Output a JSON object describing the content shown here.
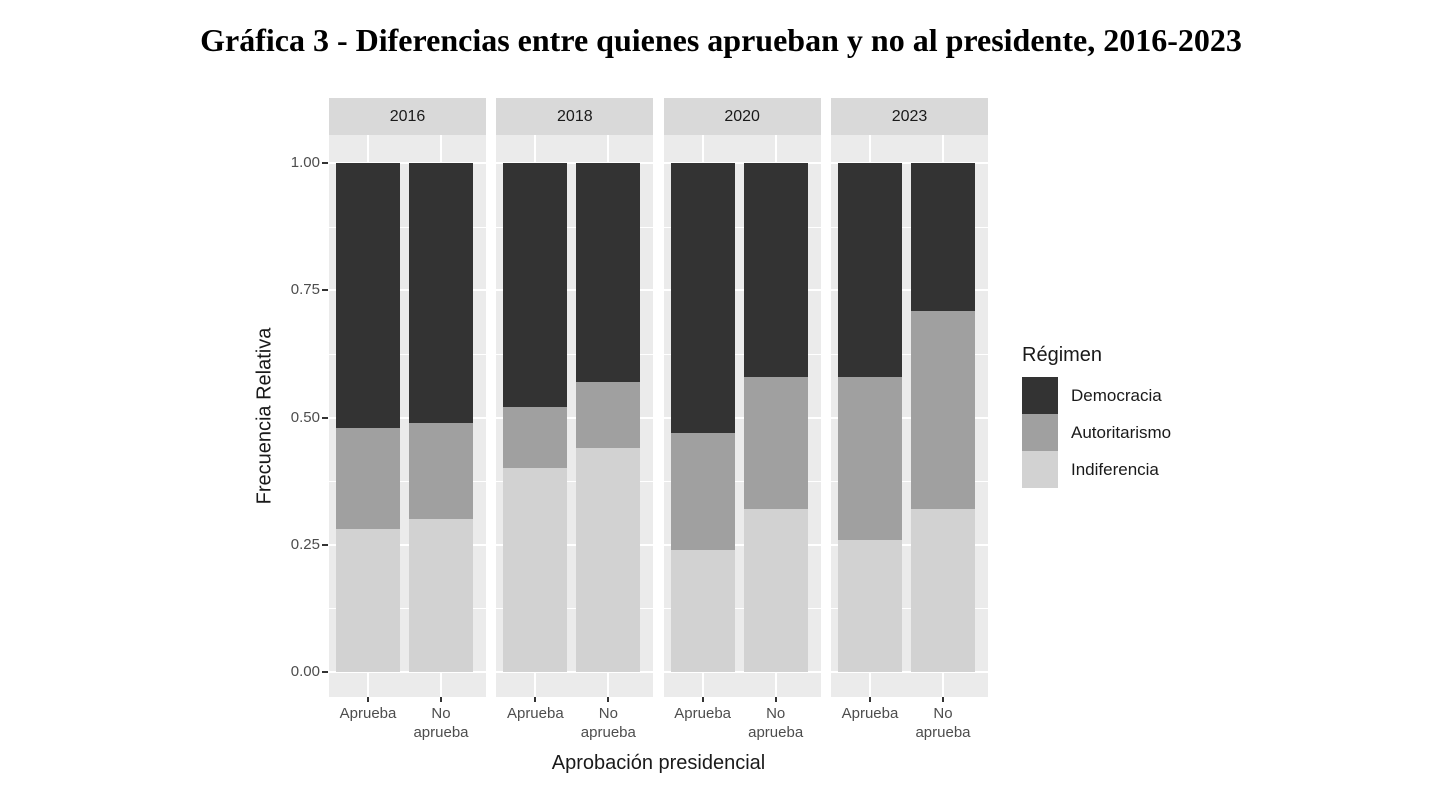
{
  "title": "Gráfica 3 - Diferencias entre quienes aprueban y no al presidente, 2016-2023",
  "chart_data": {
    "type": "bar",
    "stacked": true,
    "normalized": true,
    "title": "Gráfica 3 - Diferencias entre quienes aprueban y no al presidente, 2016-2023",
    "xlabel": "Aprobación presidencial",
    "ylabel": "Frecuencia Relativa",
    "ylim": [
      0,
      1
    ],
    "y_ticks": [
      "1.00",
      "0.75",
      "0.50",
      "0.25",
      "0.00"
    ],
    "y_minor_gridlines": [
      0.875,
      0.625,
      0.375,
      0.125
    ],
    "grid": "white gridlines on gray panel",
    "legend_position": "right",
    "legend": {
      "title": "Régimen",
      "entries": [
        {
          "label": "Democracia",
          "color": "#333333"
        },
        {
          "label": "Autoritarismo",
          "color": "#a0a0a0"
        },
        {
          "label": "Indiferencia",
          "color": "#d2d2d2"
        }
      ]
    },
    "series_order_top_to_bottom": [
      "Democracia",
      "Autoritarismo",
      "Indiferencia"
    ],
    "facets": [
      {
        "label": "2016",
        "bars": [
          {
            "label": "Aprueba",
            "values": {
              "Democracia": 0.52,
              "Autoritarismo": 0.2,
              "Indiferencia": 0.28
            }
          },
          {
            "label": "No aprueba",
            "values": {
              "Democracia": 0.51,
              "Autoritarismo": 0.19,
              "Indiferencia": 0.3
            }
          }
        ]
      },
      {
        "label": "2018",
        "bars": [
          {
            "label": "Aprueba",
            "values": {
              "Democracia": 0.48,
              "Autoritarismo": 0.12,
              "Indiferencia": 0.4
            }
          },
          {
            "label": "No aprueba",
            "values": {
              "Democracia": 0.43,
              "Autoritarismo": 0.13,
              "Indiferencia": 0.44
            }
          }
        ]
      },
      {
        "label": "2020",
        "bars": [
          {
            "label": "Aprueba",
            "values": {
              "Democracia": 0.53,
              "Autoritarismo": 0.23,
              "Indiferencia": 0.24
            }
          },
          {
            "label": "No aprueba",
            "values": {
              "Democracia": 0.42,
              "Autoritarismo": 0.26,
              "Indiferencia": 0.32
            }
          }
        ]
      },
      {
        "label": "2023",
        "bars": [
          {
            "label": "Aprueba",
            "values": {
              "Democracia": 0.42,
              "Autoritarismo": 0.32,
              "Indiferencia": 0.26
            }
          },
          {
            "label": "No aprueba",
            "values": {
              "Democracia": 0.29,
              "Autoritarismo": 0.39,
              "Indiferencia": 0.32
            }
          }
        ]
      }
    ]
  },
  "colors": {
    "background": "#ffffff",
    "panel_background": "#ebebeb",
    "strip_background": "#d9d9d9",
    "gridline": "#ffffff",
    "tick_mark": "#333333",
    "tick_label": "#4d4d4d",
    "text": "#1a1a1a"
  }
}
